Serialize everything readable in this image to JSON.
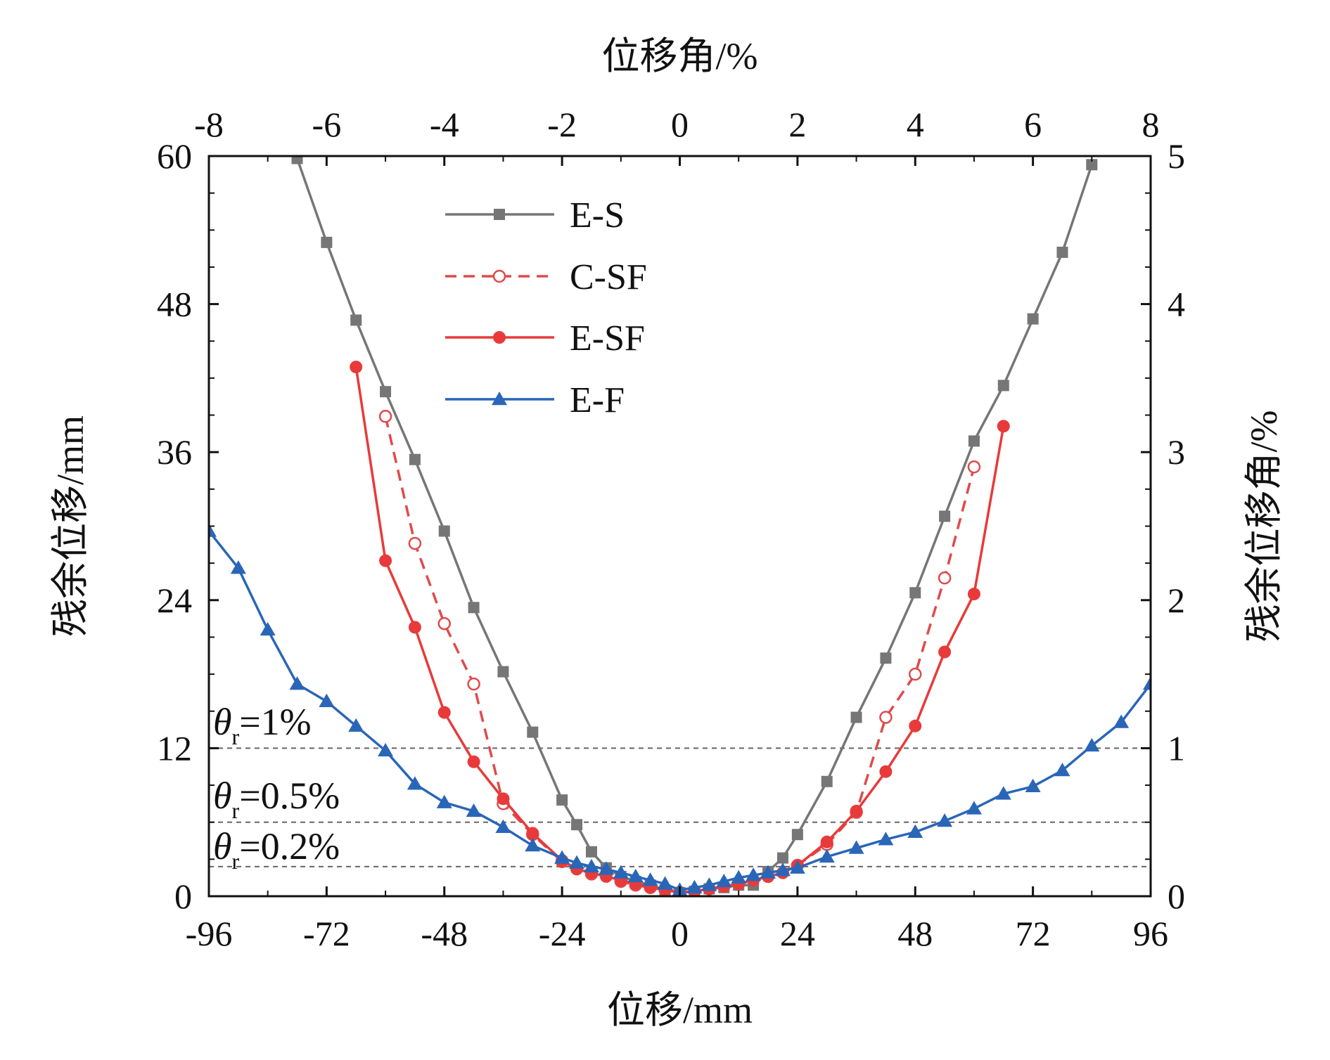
{
  "chart_data": {
    "type": "line",
    "xlabel": "位移/mm",
    "ylabel": "残余位移/mm",
    "x2label": "位移角/%",
    "y2label": "残余位移角/%",
    "xlim": [
      -96,
      96
    ],
    "ylim": [
      0,
      60
    ],
    "x2lim": [
      -8,
      8
    ],
    "y2lim": [
      0,
      5
    ],
    "xticks": [
      "-96",
      "-72",
      "-48",
      "-24",
      "0",
      "24",
      "48",
      "72",
      "96"
    ],
    "yticks": [
      "0",
      "12",
      "24",
      "36",
      "48",
      "60"
    ],
    "x2ticks": [
      "-8",
      "-6",
      "-4",
      "-2",
      "0",
      "2",
      "4",
      "6",
      "8"
    ],
    "y2ticks": [
      "0",
      "1",
      "2",
      "3",
      "4",
      "5"
    ],
    "legend_position": "top-left",
    "grid": false,
    "series": [
      {
        "name": "E-S",
        "color": "#767676",
        "marker": "square",
        "dashed": false,
        "x": [
          -78,
          -72,
          -66,
          -60,
          -54,
          -48,
          -42,
          -36,
          -30,
          -24,
          -21,
          -18,
          -15,
          -12,
          -9,
          -6,
          -3,
          0,
          3,
          6,
          9,
          12,
          15,
          18,
          21,
          24,
          30,
          36,
          42,
          48,
          54,
          60,
          66,
          72,
          78,
          84
        ],
        "y": [
          59.8,
          53.0,
          46.7,
          40.9,
          35.4,
          29.6,
          23.4,
          18.2,
          13.3,
          7.8,
          5.8,
          3.6,
          2.3,
          1.6,
          1.2,
          0.9,
          0.5,
          0.3,
          0.4,
          0.6,
          0.7,
          0.9,
          0.9,
          2.0,
          3.1,
          5.0,
          9.3,
          14.5,
          19.3,
          24.6,
          30.8,
          36.9,
          41.4,
          46.8,
          52.2,
          59.3
        ]
      },
      {
        "name": "C-SF",
        "color": "#e04a4a",
        "marker": "open-circle",
        "dashed": true,
        "x": [
          -60,
          -54,
          -48,
          -42,
          -36,
          -30,
          -24,
          -18,
          -12,
          -9,
          -6,
          -3,
          0,
          3,
          6,
          9,
          12,
          18,
          24,
          30,
          36,
          42,
          48,
          54,
          60
        ],
        "y": [
          38.9,
          28.6,
          22.1,
          17.2,
          7.5,
          5.0,
          2.8,
          1.8,
          1.2,
          0.9,
          0.7,
          0.5,
          0.3,
          0.4,
          0.6,
          0.8,
          1.0,
          1.6,
          2.5,
          4.2,
          6.8,
          14.5,
          18.0,
          25.8,
          34.8
        ]
      },
      {
        "name": "E-SF",
        "color": "#e83a3a",
        "marker": "filled-circle",
        "dashed": false,
        "x": [
          -66,
          -60,
          -54,
          -48,
          -42,
          -36,
          -30,
          -24,
          -21,
          -18,
          -15,
          -12,
          -9,
          -6,
          -3,
          0,
          3,
          6,
          9,
          12,
          15,
          18,
          21,
          24,
          30,
          36,
          42,
          48,
          54,
          60,
          66
        ],
        "y": [
          42.9,
          27.2,
          21.8,
          14.9,
          10.9,
          7.9,
          5.1,
          2.9,
          2.2,
          1.9,
          1.6,
          1.3,
          1.0,
          0.8,
          0.6,
          0.3,
          0.4,
          0.6,
          0.8,
          1.0,
          1.3,
          1.6,
          1.9,
          2.5,
          4.4,
          6.9,
          10.1,
          13.8,
          19.8,
          24.5,
          38.1
        ]
      },
      {
        "name": "E-F",
        "color": "#2a66b8",
        "marker": "triangle",
        "dashed": false,
        "x": [
          -96,
          -90,
          -84,
          -78,
          -72,
          -66,
          -60,
          -54,
          -48,
          -42,
          -36,
          -30,
          -24,
          -21,
          -18,
          -15,
          -12,
          -9,
          -6,
          -3,
          0,
          3,
          6,
          9,
          12,
          15,
          18,
          21,
          24,
          30,
          36,
          42,
          48,
          54,
          60,
          66,
          72,
          78,
          84,
          90,
          96
        ],
        "y": [
          29.6,
          26.6,
          21.6,
          17.2,
          15.8,
          13.8,
          11.8,
          9.1,
          7.6,
          6.9,
          5.6,
          4.1,
          3.1,
          2.7,
          2.4,
          2.2,
          1.9,
          1.6,
          1.3,
          1.0,
          0.5,
          0.7,
          0.9,
          1.2,
          1.5,
          1.7,
          1.9,
          2.1,
          2.3,
          3.2,
          3.9,
          4.6,
          5.2,
          6.1,
          7.1,
          8.3,
          8.9,
          10.2,
          12.2,
          14.1,
          17.2
        ]
      }
    ],
    "reference_lines": [
      {
        "y": 12,
        "label_symbol": "θ",
        "label_sub": "r",
        "label_value": "=1%"
      },
      {
        "y": 6,
        "label_symbol": "θ",
        "label_sub": "r",
        "label_value": "=0.5%"
      },
      {
        "y": 2.4,
        "label_symbol": "θ",
        "label_sub": "r",
        "label_value": "=0.2%"
      }
    ],
    "colors": {
      "axis": "#111111",
      "reference_line": "#666666"
    }
  }
}
